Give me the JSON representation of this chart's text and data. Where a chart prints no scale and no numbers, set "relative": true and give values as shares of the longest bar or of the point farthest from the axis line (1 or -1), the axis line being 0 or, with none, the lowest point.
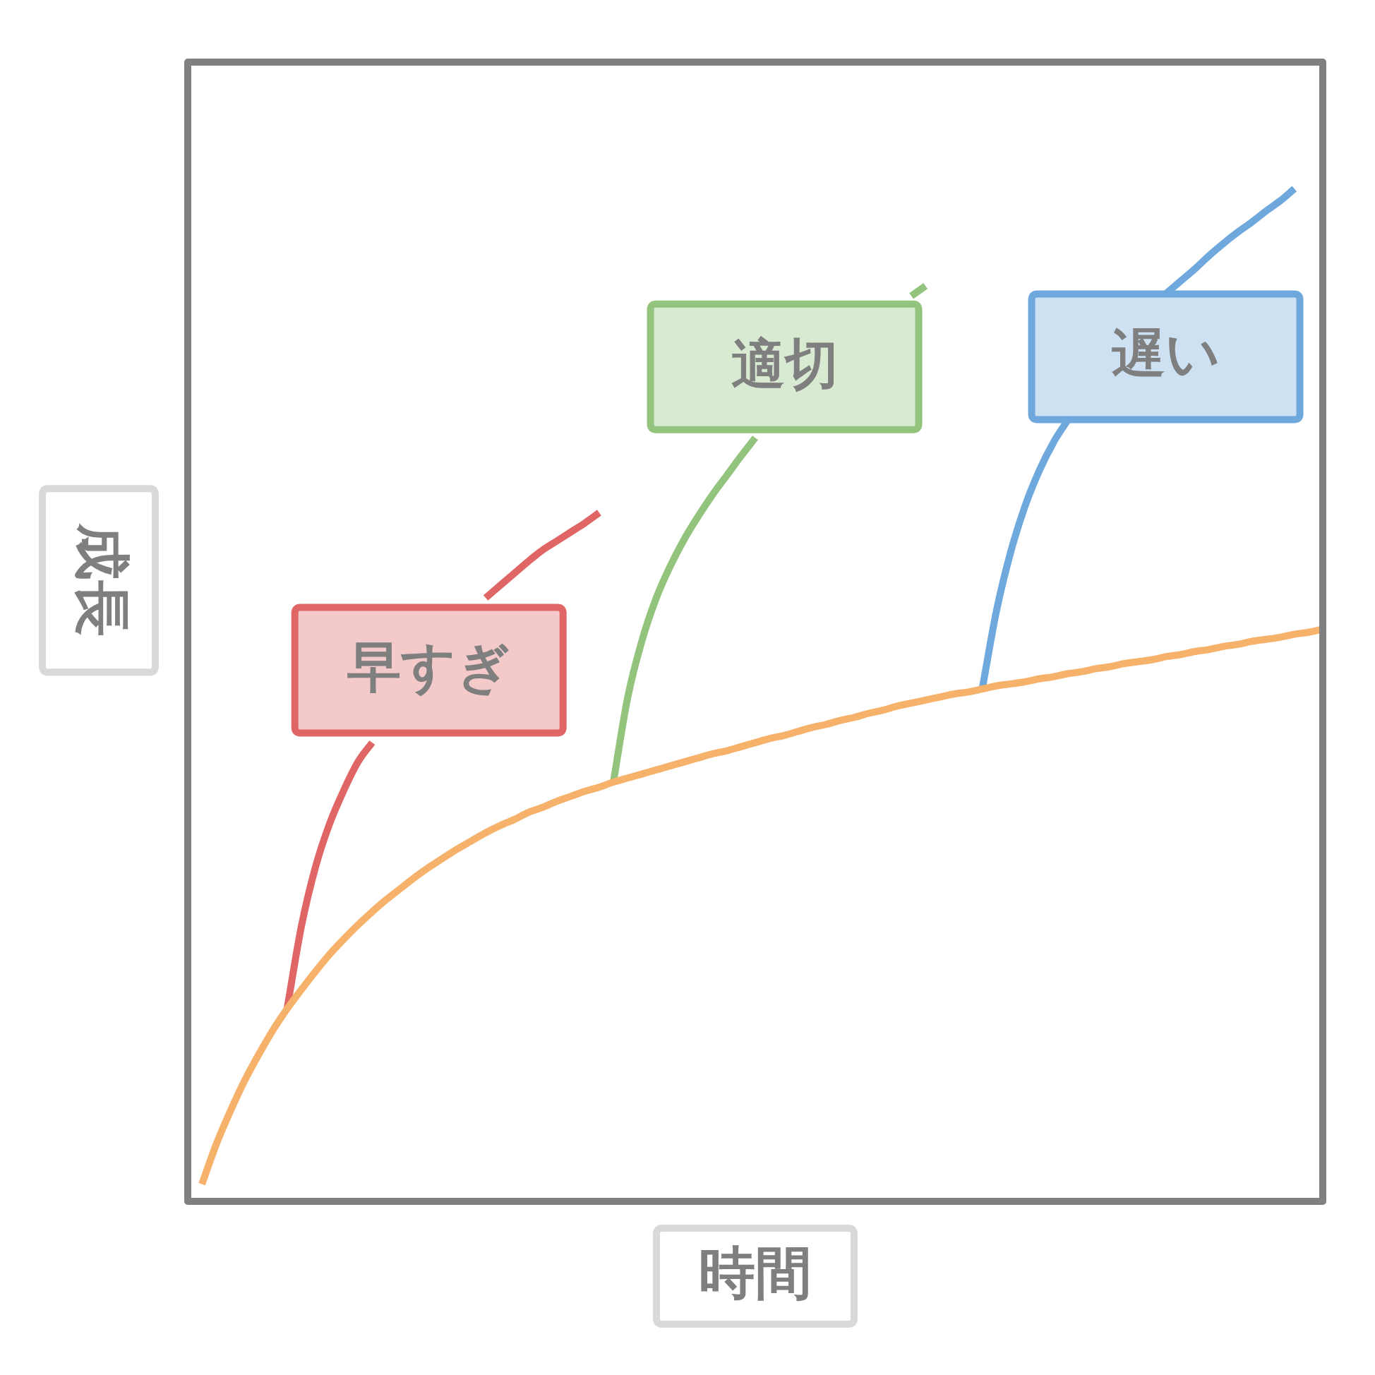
{
  "chart_data": {
    "type": "line",
    "xlabel": "時間",
    "ylabel": "成長",
    "relative": true,
    "marker": "none",
    "categories": [
      null,
      null,
      null,
      null,
      null,
      null,
      null,
      null,
      null,
      null,
      null,
      null,
      null,
      null,
      null,
      null,
      null,
      null,
      null,
      null,
      null,
      null,
      null,
      null,
      null,
      null,
      null,
      null,
      null,
      null,
      null,
      null,
      null,
      null,
      null,
      null,
      null,
      null,
      null,
      null,
      null,
      null,
      null,
      null,
      null,
      null,
      null,
      null,
      null,
      null,
      null,
      null,
      null,
      null,
      null,
      null,
      null,
      null,
      null,
      null,
      null,
      null,
      null,
      null,
      null,
      null,
      null,
      null,
      null,
      null,
      null,
      null,
      null,
      null,
      null,
      null,
      null,
      null,
      null,
      null,
      null
    ],
    "series": [
      {
        "color": "#f6b26b",
        "values": [
          null,
          0.017,
          0.056,
          0.089,
          0.119,
          0.145,
          0.169,
          0.19,
          0.209,
          0.227,
          0.244,
          0.259,
          0.273,
          0.286,
          0.298,
          0.309,
          0.32,
          0.33,
          0.339,
          0.348,
          0.356,
          0.364,
          0.371,
          0.377,
          0.384,
          0.389,
          0.395,
          0.4,
          0.405,
          0.409,
          0.414,
          0.418,
          0.422,
          0.426,
          0.43,
          0.434,
          0.438,
          0.442,
          0.445,
          0.449,
          0.453,
          0.457,
          0.46,
          0.464,
          0.468,
          0.471,
          0.475,
          0.478,
          0.482,
          0.485,
          0.489,
          0.492,
          0.495,
          0.498,
          0.501,
          0.503,
          0.506,
          0.509,
          0.511,
          0.513,
          0.516,
          0.518,
          0.521,
          0.523,
          0.526,
          0.528,
          0.531,
          0.533,
          0.535,
          0.538,
          0.54,
          0.543,
          0.545,
          0.548,
          0.55,
          0.553,
          0.555,
          0.557,
          0.56,
          0.562,
          0.565
        ]
      },
      {
        "name": "早すぎ",
        "color": "#e06666",
        "values": [
          null,
          null,
          null,
          null,
          null,
          null,
          null,
          0.19,
          0.271,
          0.33,
          0.373,
          0.406,
          0.434,
          0.453,
          null,
          null,
          null,
          null,
          null,
          null,
          null,
          0.596,
          0.608,
          0.62,
          0.632,
          0.643,
          0.652,
          0.661,
          0.67,
          0.68,
          null,
          null,
          null,
          null,
          null,
          null,
          null,
          null,
          null,
          null,
          null,
          null,
          null,
          null,
          null,
          null,
          null,
          null,
          null,
          null,
          null,
          null,
          null,
          null,
          null,
          null,
          null,
          null,
          null,
          null,
          null,
          null,
          null,
          null,
          null,
          null,
          null,
          null,
          null,
          null,
          null,
          null,
          null,
          null,
          null,
          null,
          null,
          null,
          null,
          null,
          null
        ]
      },
      {
        "name": "適切",
        "color": "#93c47d",
        "values": [
          null,
          null,
          null,
          null,
          null,
          null,
          null,
          null,
          null,
          null,
          null,
          null,
          null,
          null,
          null,
          null,
          null,
          null,
          null,
          null,
          null,
          null,
          null,
          null,
          null,
          null,
          null,
          null,
          null,
          null,
          0.414,
          0.497,
          0.553,
          0.595,
          0.627,
          0.654,
          0.677,
          0.698,
          0.717,
          0.736,
          0.754,
          null,
          null,
          null,
          null,
          null,
          null,
          null,
          null,
          null,
          null,
          0.894,
          0.904,
          null,
          null,
          null,
          null,
          null,
          null,
          null,
          null,
          null,
          null,
          null,
          null,
          null,
          null,
          null,
          null,
          null,
          null,
          null,
          null,
          null,
          null,
          null,
          null,
          null,
          null,
          null,
          null
        ]
      },
      {
        "name": "遅い",
        "color": "#6fa8dc",
        "values": [
          null,
          null,
          null,
          null,
          null,
          null,
          null,
          null,
          null,
          null,
          null,
          null,
          null,
          null,
          null,
          null,
          null,
          null,
          null,
          null,
          null,
          null,
          null,
          null,
          null,
          null,
          null,
          null,
          null,
          null,
          null,
          null,
          null,
          null,
          null,
          null,
          null,
          null,
          null,
          null,
          null,
          null,
          null,
          null,
          null,
          null,
          null,
          null,
          null,
          null,
          null,
          null,
          null,
          null,
          null,
          null,
          0.506,
          0.583,
          0.641,
          0.686,
          0.721,
          0.749,
          0.771,
          null,
          null,
          null,
          null,
          null,
          null,
          0.897,
          0.909,
          0.921,
          0.934,
          0.946,
          0.957,
          0.967,
          0.978,
          0.988,
          1,
          null,
          null
        ]
      }
    ]
  }
}
